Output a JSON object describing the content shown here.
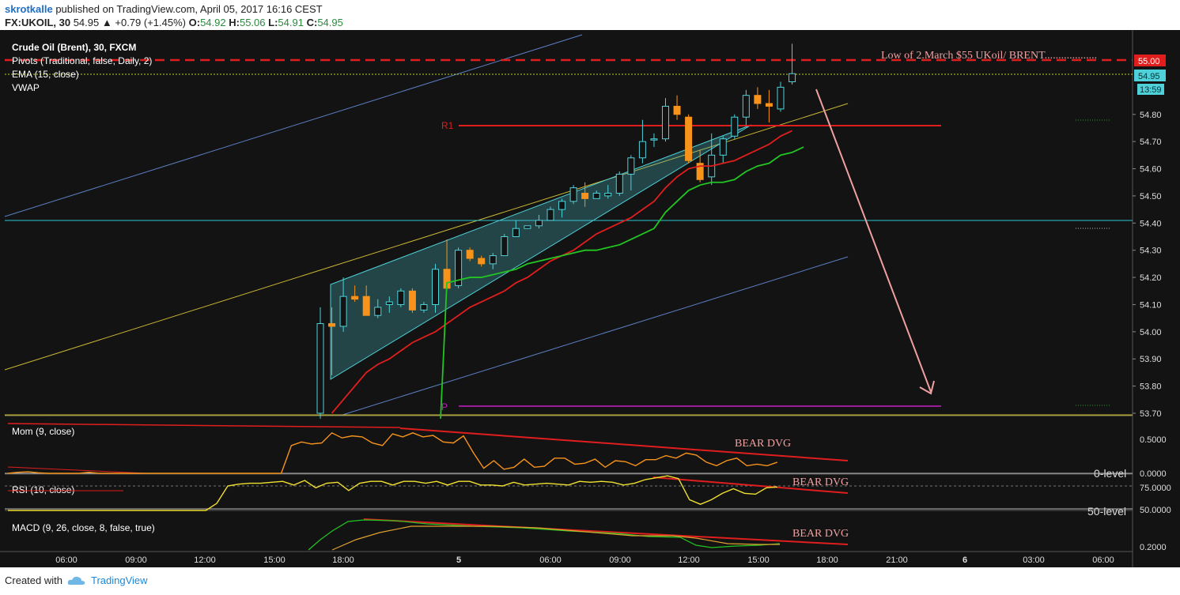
{
  "header": {
    "user": "skrotkalle",
    "published_text": "published on TradingView.com, April 05, 2017 16:16 CEST",
    "symbol": "FX:UKOIL, 30",
    "last": "54.95",
    "change_arrow": "▲",
    "change": "+0.79 (+1.45%)",
    "o_label": "O:",
    "o": "54.92",
    "h_label": "H:",
    "h": "55.06",
    "l_label": "L:",
    "l": "54.91",
    "c_label": "C:",
    "c": "54.95"
  },
  "legend": {
    "title": "Crude Oil (Brent), 30, FXCM",
    "pivots": "Pivots (Traditional, false, Daily, 2)",
    "ema": "EMA (15, close)",
    "vwap": "VWAP"
  },
  "annotations": {
    "low_note": "Low of 2.March $55 UKoil/ BRENT...................",
    "r1": "R1",
    "p": "P",
    "bear1": "BEAR DVG",
    "bear2": "BEAR DVG",
    "bear3": "BEAR DVG",
    "zero_level": "0-level",
    "fifty_level": "50-level"
  },
  "panes": {
    "mom": "Mom (9, close)",
    "rsi": "RSI (10, close)",
    "macd": "MACD (9, 26, close, 8, false, true)"
  },
  "price_axis": [
    "54.80",
    "54.70",
    "54.60",
    "54.50",
    "54.40",
    "54.30",
    "54.20",
    "54.10",
    "54.00",
    "53.90",
    "53.80",
    "53.70"
  ],
  "price_tags": {
    "level": "55.00",
    "last": "54.95",
    "timer": "13:59"
  },
  "mom_axis": [
    "0.5000",
    "0.0000"
  ],
  "rsi_axis": [
    "75.0000",
    "50.0000"
  ],
  "macd_axis": [
    "0.2000"
  ],
  "time_axis": [
    "06:00",
    "09:00",
    "12:00",
    "15:00",
    "18:00",
    "5",
    "06:00",
    "09:00",
    "12:00",
    "15:00",
    "18:00",
    "21:00",
    "6",
    "03:00",
    "06:00"
  ],
  "colors": {
    "bg": "#131313",
    "up": "#4fd1d9",
    "down": "#f7931a",
    "r1": "#e01e1e",
    "pivot_p": "#c81ec8",
    "ema": "#e01e1e",
    "vwap": "#22c522",
    "arrow": "#f0a0a0"
  },
  "chart_data": {
    "type": "candlestick",
    "title": "Crude Oil (Brent), 30, FXCM",
    "ylim": [
      53.7,
      55.1
    ],
    "levels": {
      "low_march_2": 55.0,
      "R1": 54.77,
      "P": 53.74,
      "last": 54.95
    },
    "candles": [
      {
        "o": 53.7,
        "h": 54.09,
        "l": 53.68,
        "c": 54.03
      },
      {
        "o": 54.03,
        "h": 54.09,
        "l": 53.84,
        "c": 54.02
      },
      {
        "o": 54.02,
        "h": 54.2,
        "l": 54.0,
        "c": 54.13
      },
      {
        "o": 54.13,
        "h": 54.17,
        "l": 54.11,
        "c": 54.12
      },
      {
        "o": 54.13,
        "h": 54.17,
        "l": 54.06,
        "c": 54.06
      },
      {
        "o": 54.06,
        "h": 54.12,
        "l": 54.05,
        "c": 54.09
      },
      {
        "o": 54.1,
        "h": 54.13,
        "l": 54.07,
        "c": 54.11
      },
      {
        "o": 54.1,
        "h": 54.16,
        "l": 54.09,
        "c": 54.15
      },
      {
        "o": 54.15,
        "h": 54.16,
        "l": 54.07,
        "c": 54.08
      },
      {
        "o": 54.08,
        "h": 54.11,
        "l": 54.07,
        "c": 54.1
      },
      {
        "o": 54.1,
        "h": 54.25,
        "l": 54.07,
        "c": 54.23
      },
      {
        "o": 54.23,
        "h": 54.34,
        "l": 54.15,
        "c": 54.16
      },
      {
        "o": 54.17,
        "h": 54.31,
        "l": 54.16,
        "c": 54.3
      },
      {
        "o": 54.3,
        "h": 54.31,
        "l": 54.26,
        "c": 54.27
      },
      {
        "o": 54.27,
        "h": 54.28,
        "l": 54.24,
        "c": 54.25
      },
      {
        "o": 54.25,
        "h": 54.29,
        "l": 54.23,
        "c": 54.28
      },
      {
        "o": 54.28,
        "h": 54.36,
        "l": 54.28,
        "c": 54.35
      },
      {
        "o": 54.35,
        "h": 54.41,
        "l": 54.35,
        "c": 54.38
      },
      {
        "o": 54.38,
        "h": 54.39,
        "l": 54.38,
        "c": 54.39
      },
      {
        "o": 54.39,
        "h": 54.43,
        "l": 54.38,
        "c": 54.41
      },
      {
        "o": 54.41,
        "h": 54.46,
        "l": 54.41,
        "c": 54.45
      },
      {
        "o": 54.45,
        "h": 54.49,
        "l": 54.42,
        "c": 54.48
      },
      {
        "o": 54.48,
        "h": 54.54,
        "l": 54.47,
        "c": 54.53
      },
      {
        "o": 54.51,
        "h": 54.55,
        "l": 54.46,
        "c": 54.49
      },
      {
        "o": 54.49,
        "h": 54.52,
        "l": 54.49,
        "c": 54.51
      },
      {
        "o": 54.5,
        "h": 54.54,
        "l": 54.49,
        "c": 54.51
      },
      {
        "o": 54.51,
        "h": 54.59,
        "l": 54.5,
        "c": 54.58
      },
      {
        "o": 54.58,
        "h": 54.65,
        "l": 54.52,
        "c": 54.64
      },
      {
        "o": 54.64,
        "h": 54.78,
        "l": 54.62,
        "c": 54.7
      },
      {
        "o": 54.71,
        "h": 54.73,
        "l": 54.68,
        "c": 54.71
      },
      {
        "o": 54.71,
        "h": 54.86,
        "l": 54.7,
        "c": 54.83
      },
      {
        "o": 54.83,
        "h": 54.87,
        "l": 54.78,
        "c": 54.8
      },
      {
        "o": 54.79,
        "h": 54.8,
        "l": 54.62,
        "c": 54.63
      },
      {
        "o": 54.62,
        "h": 54.67,
        "l": 54.55,
        "c": 54.56
      },
      {
        "o": 54.57,
        "h": 54.73,
        "l": 54.54,
        "c": 54.65
      },
      {
        "o": 54.65,
        "h": 54.72,
        "l": 54.62,
        "c": 54.71
      },
      {
        "o": 54.72,
        "h": 54.8,
        "l": 54.71,
        "c": 54.79
      },
      {
        "o": 54.79,
        "h": 54.89,
        "l": 54.76,
        "c": 54.87
      },
      {
        "o": 54.87,
        "h": 54.9,
        "l": 54.82,
        "c": 54.84
      },
      {
        "o": 54.84,
        "h": 54.89,
        "l": 54.77,
        "c": 54.83
      },
      {
        "o": 54.82,
        "h": 54.92,
        "l": 54.81,
        "c": 54.9
      },
      {
        "o": 54.92,
        "h": 55.06,
        "l": 54.91,
        "c": 54.95
      }
    ],
    "ema": [
      53.7,
      53.75,
      53.8,
      53.85,
      53.88,
      53.9,
      53.93,
      53.96,
      53.98,
      54.0,
      54.03,
      54.06,
      54.09,
      54.11,
      54.13,
      54.15,
      54.18,
      54.2,
      54.23,
      54.26,
      54.28,
      54.3,
      54.33,
      54.36,
      54.38,
      54.4,
      54.42,
      54.45,
      54.48,
      54.53,
      54.57,
      54.6,
      54.61,
      54.61,
      54.62,
      54.63,
      54.65,
      54.67,
      54.69,
      54.72,
      54.74
    ],
    "vwap": [
      54.18,
      54.19,
      54.2,
      54.2,
      54.21,
      54.22,
      54.23,
      54.25,
      54.26,
      54.27,
      54.28,
      54.29,
      54.3,
      54.3,
      54.31,
      54.32,
      54.34,
      54.36,
      54.38,
      54.44,
      54.48,
      54.52,
      54.54,
      54.55,
      54.55,
      54.56,
      54.59,
      54.61,
      54.62,
      54.65,
      54.66,
      54.68
    ],
    "mom_ylim": [
      -0.2,
      1.0
    ],
    "rsi_ylim": [
      40,
      90
    ],
    "macd_ylim": [
      0.1,
      0.55
    ]
  }
}
